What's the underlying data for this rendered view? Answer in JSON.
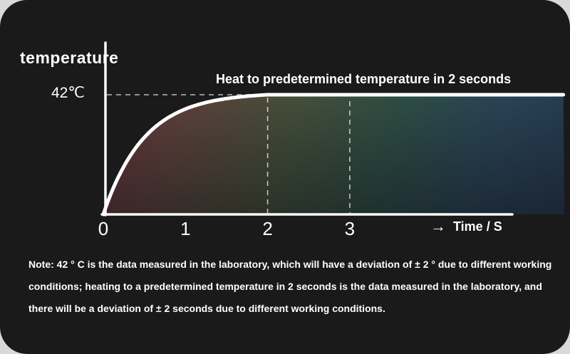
{
  "chart_data": {
    "type": "line",
    "title": "",
    "ylabel": "temperature",
    "xlabel": "Time / S",
    "y_tick_label": "42℃",
    "x_ticks": [
      "0",
      "1",
      "2",
      "3"
    ],
    "annotation": "Heat to predetermined temperature in 2 seconds",
    "plateau_temp_c": 42,
    "time_to_plateau_s": 2,
    "x_range": [
      0,
      5
    ],
    "y_range": [
      0,
      46
    ],
    "grid": "off",
    "legend": "none",
    "series": [
      {
        "name": "temperature",
        "shape": "exponential rise reaching plateau of 42°C at t = 2 s, flat afterwards",
        "points": [
          {
            "t": 0,
            "temp": 0
          },
          {
            "t": 0.25,
            "temp": 17
          },
          {
            "t": 0.5,
            "temp": 27
          },
          {
            "t": 1,
            "temp": 37
          },
          {
            "t": 1.5,
            "temp": 40.5
          },
          {
            "t": 2,
            "temp": 42
          },
          {
            "t": 3,
            "temp": 42
          },
          {
            "t": 4,
            "temp": 42
          },
          {
            "t": 5,
            "temp": 42
          }
        ]
      }
    ],
    "dashed_guides": {
      "horizontal_at_temp": 42,
      "vertical_at_times": [
        2,
        3
      ]
    }
  },
  "axis": {
    "time_arrow": "→",
    "time_label": "Time / S"
  },
  "note": {
    "text": "Note: 42 ° C is the data measured in the laboratory, which will have a deviation of ± 2 ° due to different working conditions; heating to a predetermined temperature in 2 seconds is the data measured in the laboratory, and there will be a deviation of ± 2 seconds due to different working conditions."
  },
  "colors": {
    "outer_bg": "#d9d9d9",
    "panel_bg": "#1a1a1b",
    "curve": "#ffffff",
    "text": "#ffffff",
    "area_gradient": [
      "#7a3440",
      "#6a4a42",
      "#4c5a40",
      "#32584d",
      "#2c4c62",
      "#27405c"
    ]
  }
}
